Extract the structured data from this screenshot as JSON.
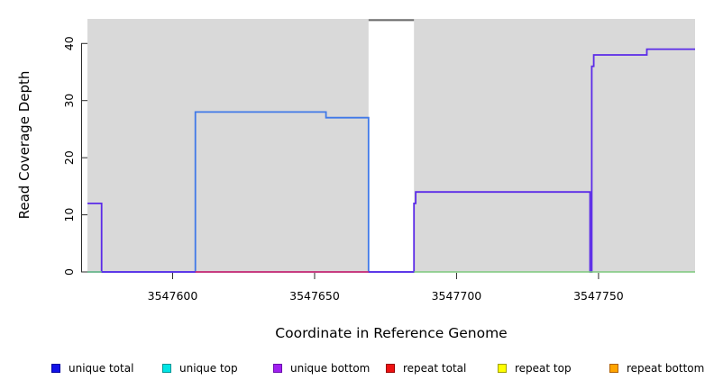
{
  "x_axis": {
    "title": "Coordinate in Reference Genome",
    "tick_labels": [
      "3547600",
      "3547650",
      "3547700",
      "3547750"
    ]
  },
  "y_axis": {
    "title": "Read Coverage Depth",
    "tick_labels": [
      "0",
      "10",
      "20",
      "30",
      "40"
    ]
  },
  "chart_data": {
    "type": "line",
    "subtype": "step-coverage",
    "title": "",
    "xlabel": "Coordinate in Reference Genome",
    "ylabel": "Read Coverage Depth",
    "xlim": [
      3547570,
      3547784
    ],
    "ylim": [
      0,
      44.3
    ],
    "x_ticks": [
      3547600,
      3547650,
      3547700,
      3547750
    ],
    "y_ticks": [
      0,
      10,
      20,
      30,
      40
    ],
    "grid": false,
    "legend_position": "bottom",
    "background_regions": [
      {
        "name": "shaded-region-left",
        "x_start": 3547570,
        "x_end": 3547669,
        "color": "#d9d9d9"
      },
      {
        "name": "shaded-region-right",
        "x_start": 3547685,
        "x_end": 3547784,
        "color": "#d9d9d9"
      }
    ],
    "series": [
      {
        "name": "unique total",
        "color": "#4079e8",
        "line_width": 1.8,
        "points": [
          [
            3547570,
            0
          ],
          [
            3547608,
            0
          ],
          [
            3547608,
            28
          ],
          [
            3547654,
            28
          ],
          [
            3547654,
            27
          ],
          [
            3547669,
            27
          ],
          [
            3547669,
            0
          ],
          [
            3547685,
            0
          ]
        ]
      },
      {
        "name": "unique bottom",
        "color": "#5b2be8",
        "line_width": 1.8,
        "points": [
          [
            3547570,
            12
          ],
          [
            3547575,
            12
          ],
          [
            3547575,
            0
          ],
          [
            3547685,
            0
          ],
          [
            3547685,
            12
          ],
          [
            3547685.6,
            12
          ],
          [
            3547685.6,
            14
          ],
          [
            3547747,
            14
          ],
          [
            3547747,
            0
          ],
          [
            3547747.6,
            0
          ],
          [
            3547747.6,
            36
          ],
          [
            3547748.3,
            36
          ],
          [
            3547748.3,
            38
          ],
          [
            3547767,
            38
          ],
          [
            3547767,
            39
          ],
          [
            3547784,
            39
          ]
        ]
      },
      {
        "name": "repeat total",
        "color": "#e0335f",
        "line_width": 1.5,
        "points": [
          [
            3547608,
            0
          ],
          [
            3547669,
            0
          ]
        ]
      },
      {
        "name": "baseline left",
        "color": "#7cc87c",
        "line_width": 1.5,
        "points": [
          [
            3547570,
            0
          ],
          [
            3547575,
            0
          ]
        ]
      },
      {
        "name": "baseline right",
        "color": "#7cc87c",
        "line_width": 1.5,
        "points": [
          [
            3547685,
            0
          ],
          [
            3547784,
            0
          ]
        ]
      },
      {
        "name": "clipped peak",
        "color": "#6e6e6e",
        "line_width": 2.2,
        "points": [
          [
            3547669,
            44.1
          ],
          [
            3547685,
            44.1
          ]
        ]
      }
    ]
  },
  "legend": {
    "items": [
      {
        "label": "unique total",
        "fill": "#1212e8",
        "border": "#0000a0"
      },
      {
        "label": "unique top",
        "fill": "#00e5e5",
        "border": "#009595"
      },
      {
        "label": "unique bottom",
        "fill": "#a020f0",
        "border": "#6a0dad"
      },
      {
        "label": "repeat total",
        "fill": "#ee1111",
        "border": "#990000"
      },
      {
        "label": "repeat top",
        "fill": "#ffff00",
        "border": "#a0a000"
      },
      {
        "label": "repeat bottom",
        "fill": "#ffa500",
        "border": "#b06000"
      }
    ]
  }
}
